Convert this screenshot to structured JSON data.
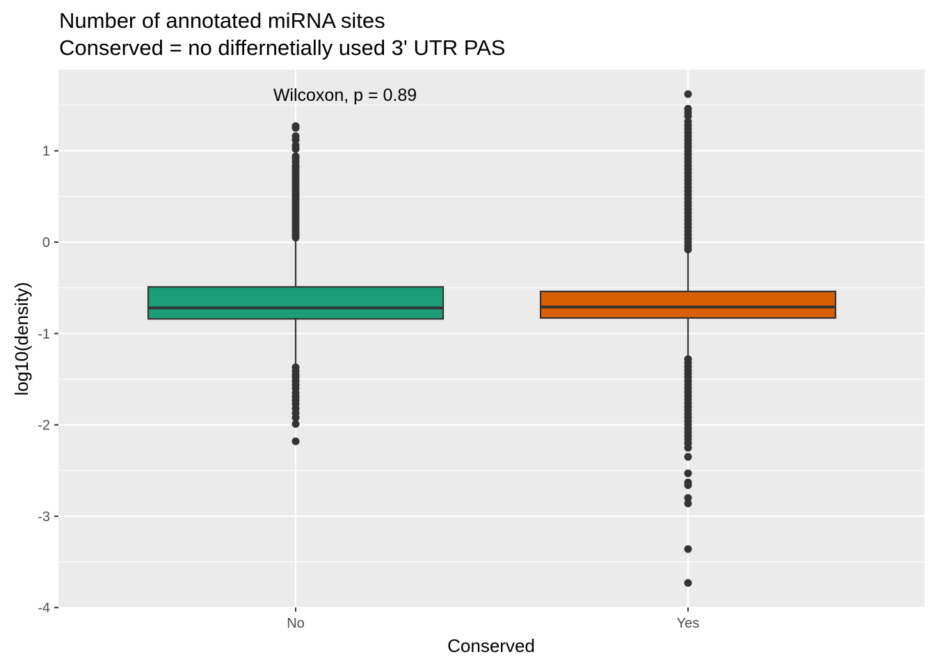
{
  "chart_data": {
    "type": "boxplot",
    "title": [
      "Number of annotated miRNA sites",
      "Conserved = no differnetially used 3' UTR PAS"
    ],
    "xlabel": "Conserved",
    "ylabel": "log10(density)",
    "categories": [
      "No",
      "Yes"
    ],
    "ylim": [
      -4,
      1.9
    ],
    "yticks": [
      1,
      0,
      -1,
      -2,
      -3,
      -4
    ],
    "ytick_labels": [
      "1",
      "0",
      "-1",
      "-2",
      "-3",
      "-4"
    ],
    "grid": true,
    "legend": "none",
    "annotation": "Wilcoxon, p = 0.89",
    "series": [
      {
        "category": "No",
        "color": "#1b9e77",
        "whisker_high": 0.02,
        "q3": -0.49,
        "median": -0.72,
        "q1": -0.84,
        "whisker_low": -1.35,
        "outliers": [
          1.27,
          1.25,
          1.16,
          1.12,
          1.06,
          1.02,
          0.94,
          0.92,
          0.88,
          0.84,
          0.82,
          0.79,
          0.76,
          0.73,
          0.7,
          0.67,
          0.64,
          0.61,
          0.58,
          0.55,
          0.52,
          0.5,
          0.47,
          0.44,
          0.41,
          0.38,
          0.35,
          0.32,
          0.29,
          0.26,
          0.23,
          0.2,
          0.17,
          0.14,
          0.11,
          0.08,
          0.05,
          -1.37,
          -1.41,
          -1.45,
          -1.48,
          -1.52,
          -1.56,
          -1.6,
          -1.65,
          -1.69,
          -1.73,
          -1.77,
          -1.82,
          -1.87,
          -1.92,
          -1.99,
          -2.18
        ]
      },
      {
        "category": "Yes",
        "color": "#d95f02",
        "whisker_high": -0.11,
        "q3": -0.54,
        "median": -0.71,
        "q1": -0.83,
        "whisker_low": -1.25,
        "outliers": [
          1.62,
          1.46,
          1.42,
          1.38,
          1.32,
          1.28,
          1.24,
          1.2,
          1.16,
          1.12,
          1.08,
          1.04,
          1.0,
          0.96,
          0.92,
          0.88,
          0.84,
          0.8,
          0.76,
          0.72,
          0.68,
          0.64,
          0.6,
          0.56,
          0.52,
          0.48,
          0.44,
          0.4,
          0.36,
          0.32,
          0.28,
          0.24,
          0.2,
          0.16,
          0.12,
          0.08,
          0.04,
          0.0,
          -0.04,
          -0.08,
          -1.28,
          -1.32,
          -1.36,
          -1.4,
          -1.44,
          -1.48,
          -1.52,
          -1.56,
          -1.6,
          -1.64,
          -1.68,
          -1.72,
          -1.76,
          -1.8,
          -1.84,
          -1.88,
          -1.92,
          -1.96,
          -2.0,
          -2.04,
          -2.08,
          -2.12,
          -2.16,
          -2.2,
          -2.25,
          -2.35,
          -2.53,
          -2.63,
          -2.66,
          -2.8,
          -2.86,
          -3.36,
          -3.73
        ]
      }
    ]
  }
}
